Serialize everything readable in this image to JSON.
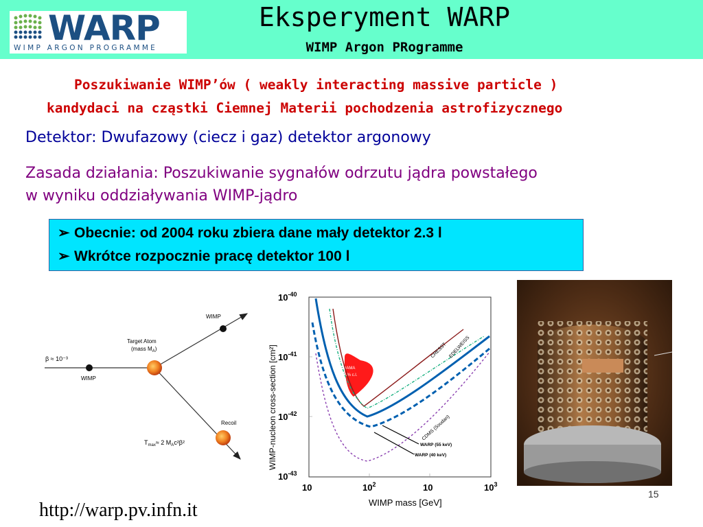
{
  "header": {
    "title": "Eksperyment WARP",
    "subtitle": "WIMP Argon PRogramme",
    "logo": {
      "word": "WARP",
      "tagline": "WIMP ARGON PROGRAMME"
    }
  },
  "intro": {
    "line1": "Poszukiwanie WIMP’ów ( weakly interacting massive particle )",
    "line2": "kandydaci na cząstki Ciemnej Materii pochodzenia astrofizycznego"
  },
  "detector": "Detektor: Dwufazowy (ciecz i gaz) detektor argonowy",
  "principle": {
    "line1": "Zasada działania: Poszukiwanie sygnałów odrzutu jądra powstałego",
    "line2": "w wyniku oddziaływania WIMP-jądro"
  },
  "bullets": [
    "Obecnie: od 2004 roku zbiera dane mały detektor 2.3 l",
    "Wkrótce rozpocznie pracę detektor 100 l"
  ],
  "scatter_diagram": {
    "beta": "β ≈ 10⁻³",
    "wimp_in": "WIMP",
    "target": "Target Atom",
    "target_mass": "(mass M",
    "target_sub": "A",
    "wimp_out": "WIMP",
    "recoil": "Recoil",
    "tmax": "T",
    "tmax_rest": "≈ 2 M",
    "tmax_tail": "c²β²"
  },
  "plot": {
    "ylabel": "WIMP-nucleon cross-section  [cm²]",
    "xlabel": "WIMP mass  [GeV]",
    "yticks": [
      "10",
      "10",
      "10",
      "10"
    ],
    "yexps": [
      "-40",
      "-41",
      "-42",
      "-43"
    ],
    "xticks": [
      "10",
      "10",
      "10",
      "10"
    ],
    "xexps": [
      "",
      "2",
      "",
      "3"
    ],
    "labels": {
      "dama": "DAMA",
      "dama2": "99% c.l.",
      "cresst": "CRESST",
      "edelweiss": "EDELWEISS",
      "cdms": "CDMS (Soudan)",
      "warp55": "WARP (55 keV)",
      "warp40": "WARP (40 keV)"
    }
  },
  "footer": {
    "url": "http://warp.pv.infn.it",
    "page": "15"
  },
  "colors": {
    "header_bg": "#66ffcc",
    "box_bg": "#00e5ff",
    "intro": "#cc0000",
    "detector": "#000099",
    "principle": "#800080"
  }
}
